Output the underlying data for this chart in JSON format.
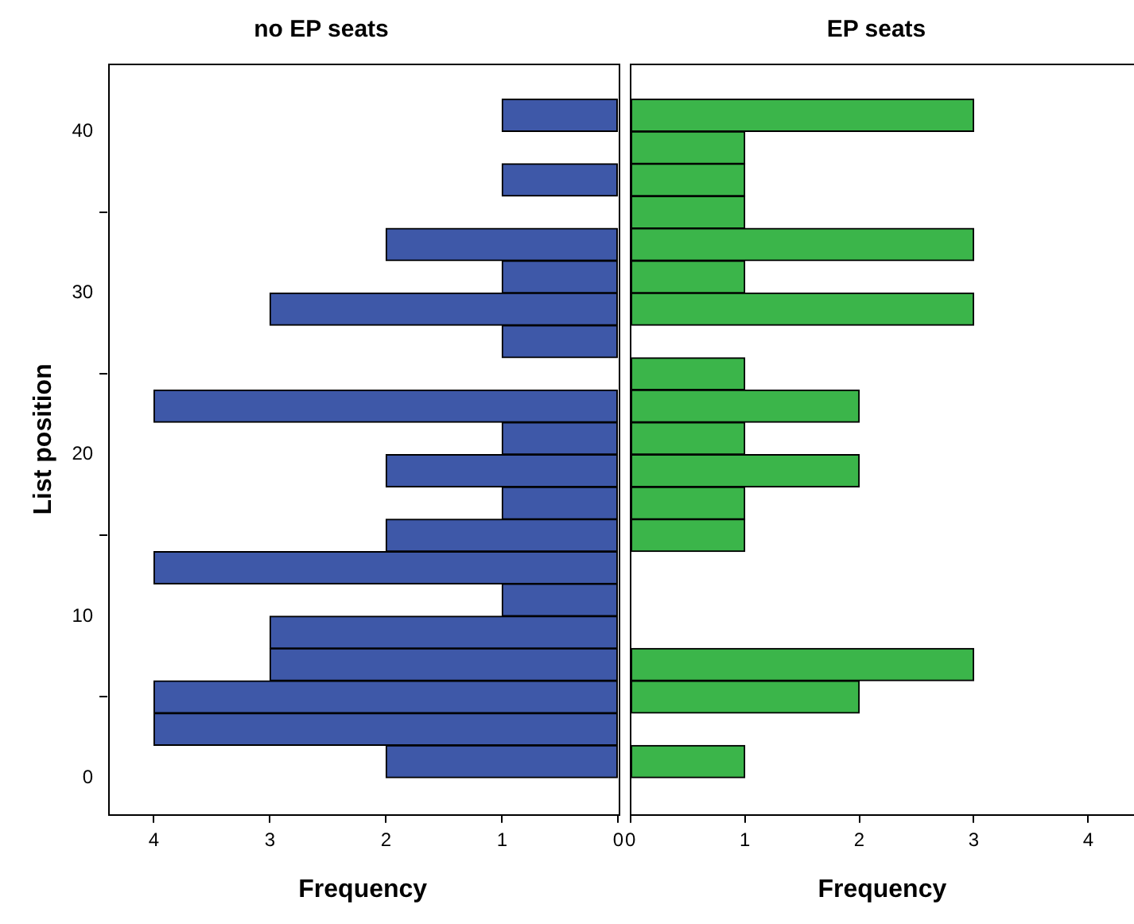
{
  "chart_data": [
    {
      "type": "histogram",
      "title": "no EP seats",
      "xlabel": "Frequency",
      "ylabel": "List position",
      "orientation": "horizontal",
      "bins": [
        0,
        2,
        4,
        6,
        8,
        10,
        12,
        14,
        16,
        18,
        20,
        22,
        24,
        26,
        28,
        30,
        32,
        34,
        36,
        38,
        40,
        42
      ],
      "values": [
        2,
        4,
        4,
        3,
        3,
        1,
        4,
        2,
        1,
        2,
        1,
        4,
        0,
        1,
        3,
        1,
        2,
        0,
        1,
        0,
        1
      ],
      "color": "#3e58a8",
      "xlim": [
        4.4,
        0
      ],
      "xticks": [
        4,
        3,
        2,
        1,
        0
      ],
      "ylim": [
        -2.3,
        44.2
      ],
      "yticks": [
        0,
        10,
        20,
        30,
        40
      ],
      "grid": false
    },
    {
      "type": "histogram",
      "title": "EP seats",
      "xlabel": "Frequency",
      "orientation": "horizontal",
      "bins": [
        0,
        2,
        4,
        6,
        8,
        10,
        12,
        14,
        16,
        18,
        20,
        22,
        24,
        26,
        28,
        30,
        32,
        34,
        36,
        38,
        40,
        42
      ],
      "values": [
        1,
        0,
        2,
        3,
        0,
        0,
        0,
        1,
        1,
        2,
        1,
        2,
        1,
        0,
        3,
        1,
        3,
        1,
        1,
        1,
        3
      ],
      "color": "#3bb54a",
      "xlim": [
        0,
        4.4
      ],
      "xticks": [
        0,
        1,
        2,
        3,
        4
      ],
      "ylim": [
        -2.3,
        44.2
      ],
      "yticks": [
        0,
        10,
        20,
        30,
        40
      ],
      "grid": false,
      "tick_labels": "x"
    }
  ]
}
